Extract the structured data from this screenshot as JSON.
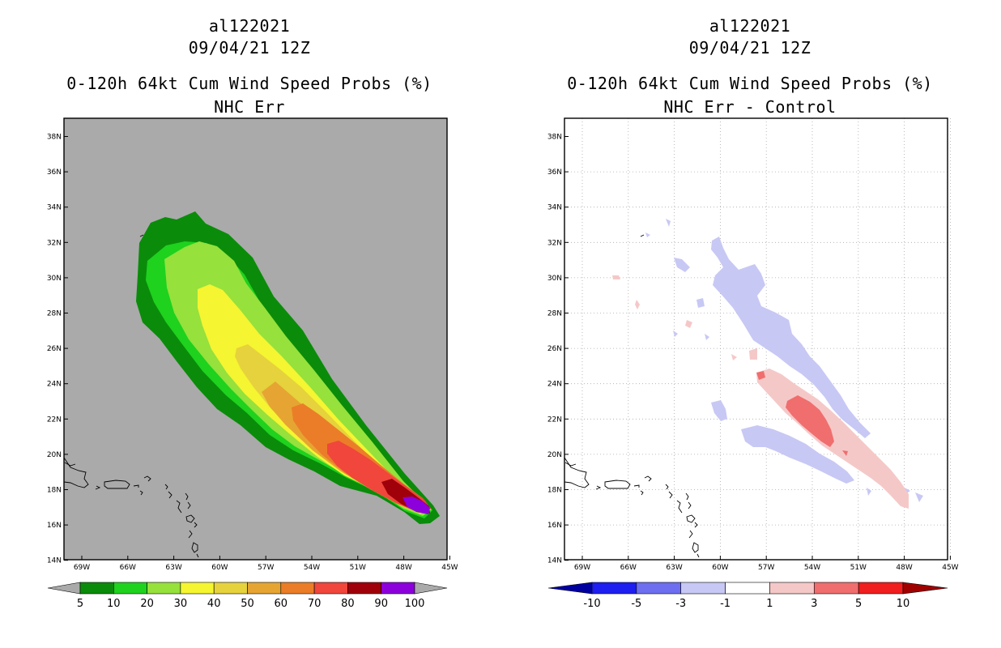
{
  "left_panel": {
    "storm_id": "al122021",
    "datetime": "09/04/21 12Z",
    "product": "0-120h 64kt Cum Wind Speed Probs (%)",
    "subtitle": "NHC Err",
    "colorbar": {
      "labels": [
        "5",
        "10",
        "20",
        "30",
        "40",
        "50",
        "60",
        "70",
        "80",
        "90",
        "100"
      ],
      "colors": [
        "#0a8c0a",
        "#1ed21e",
        "#96e13c",
        "#f5f531",
        "#e6d23c",
        "#e6a532",
        "#eb7d28",
        "#f0463c",
        "#a0000a",
        "#8c00dc"
      ]
    }
  },
  "right_panel": {
    "storm_id": "al122021",
    "datetime": "09/04/21 12Z",
    "product": "0-120h 64kt Cum Wind Speed Probs (%)",
    "subtitle": "NHC Err - Control",
    "colorbar": {
      "labels": [
        "-10",
        "-5",
        "-3",
        "-1",
        "1",
        "3",
        "5",
        "10"
      ],
      "colors": [
        "#0000a0",
        "#1e1ef0",
        "#6e6ef0",
        "#c8c8f5",
        "#ffffff",
        "#f5c8c8",
        "#f06e6e",
        "#f01e1e",
        "#a00000"
      ]
    }
  },
  "map": {
    "lat_labels": [
      "38N",
      "36N",
      "34N",
      "32N",
      "30N",
      "28N",
      "26N",
      "24N",
      "22N",
      "20N",
      "18N",
      "16N",
      "14N"
    ],
    "lon_labels": [
      "69W",
      "66W",
      "63W",
      "60W",
      "57W",
      "54W",
      "51W",
      "48W",
      "45W"
    ],
    "colors": {
      "background_left": "#aaaaaa",
      "background_right": "#ffffff",
      "coast": "#000000",
      "grid": "#aaaaaa"
    }
  }
}
